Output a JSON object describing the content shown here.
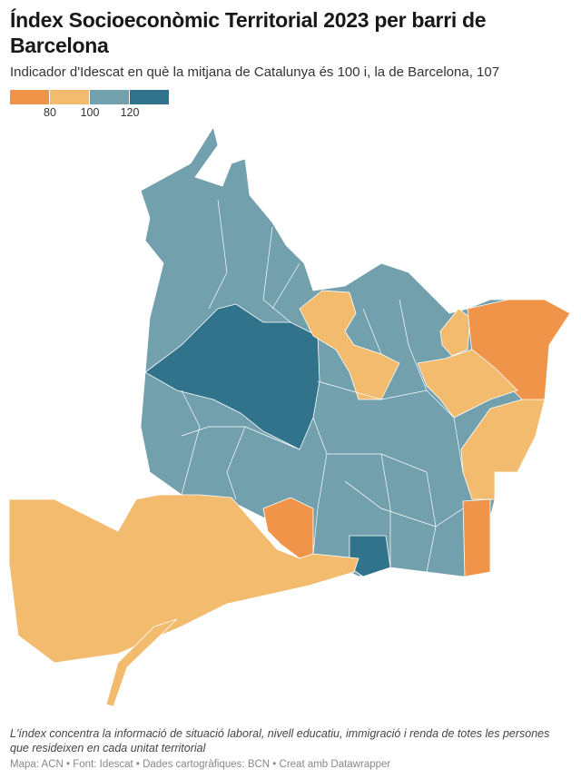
{
  "header": {
    "title": "Índex Socioeconòmic Territorial 2023 per barri de Barcelona",
    "subtitle": "Indicador d'Idescat en què la mitjana de Catalunya és 100 i, la de Barcelona, 107"
  },
  "legend": {
    "colors": [
      "#f0944a",
      "#f2bb6e",
      "#72a0ad",
      "#31738a"
    ],
    "ticks": [
      "80",
      "100",
      "120"
    ]
  },
  "footer": {
    "note": "L'índex concentra la informació de situació laboral, nivell educatiu, immigració i renda de totes les persones que resideixen en cada unitat territorial",
    "credit": "Mapa: ACN • Font: Idescat • Dades cartogràfiques: BCN  • Creat amb Datawrapper"
  }
}
